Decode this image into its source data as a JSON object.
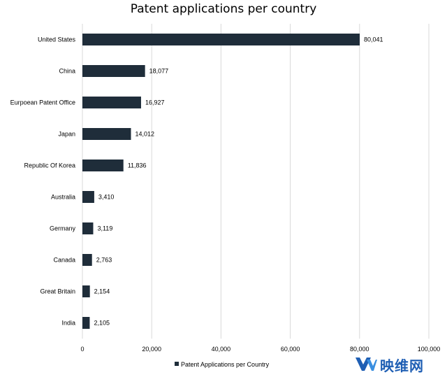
{
  "chart_data": {
    "type": "bar",
    "orientation": "horizontal",
    "title": "Patent applications per country",
    "categories": [
      "United States",
      "China",
      "Eurpoean Patent Office",
      "Japan",
      "Republic Of Korea",
      "Australia",
      "Germany",
      "Canada",
      "Great Britain",
      "India"
    ],
    "series": [
      {
        "name": "Patent Applications per Country",
        "values": [
          80041,
          18077,
          16927,
          14012,
          11836,
          3410,
          3119,
          2763,
          2154,
          2105
        ],
        "value_labels": [
          "80,041",
          "18,077",
          "16,927",
          "14,012",
          "11,836",
          "3,410",
          "3,119",
          "2,763",
          "2,154",
          "2,105"
        ]
      }
    ],
    "xlim": [
      0,
      100000
    ],
    "x_ticks": [
      0,
      20000,
      40000,
      60000,
      80000,
      100000
    ],
    "x_tick_labels": [
      "0",
      "20,000",
      "40,000",
      "60,000",
      "80,000",
      "100,000"
    ],
    "grid": true,
    "legend_position": "bottom",
    "colors": {
      "bar": "#1f2d3a",
      "grid": "#d9d9d9",
      "text": "#000000"
    }
  },
  "watermark": {
    "text": "映维网"
  }
}
